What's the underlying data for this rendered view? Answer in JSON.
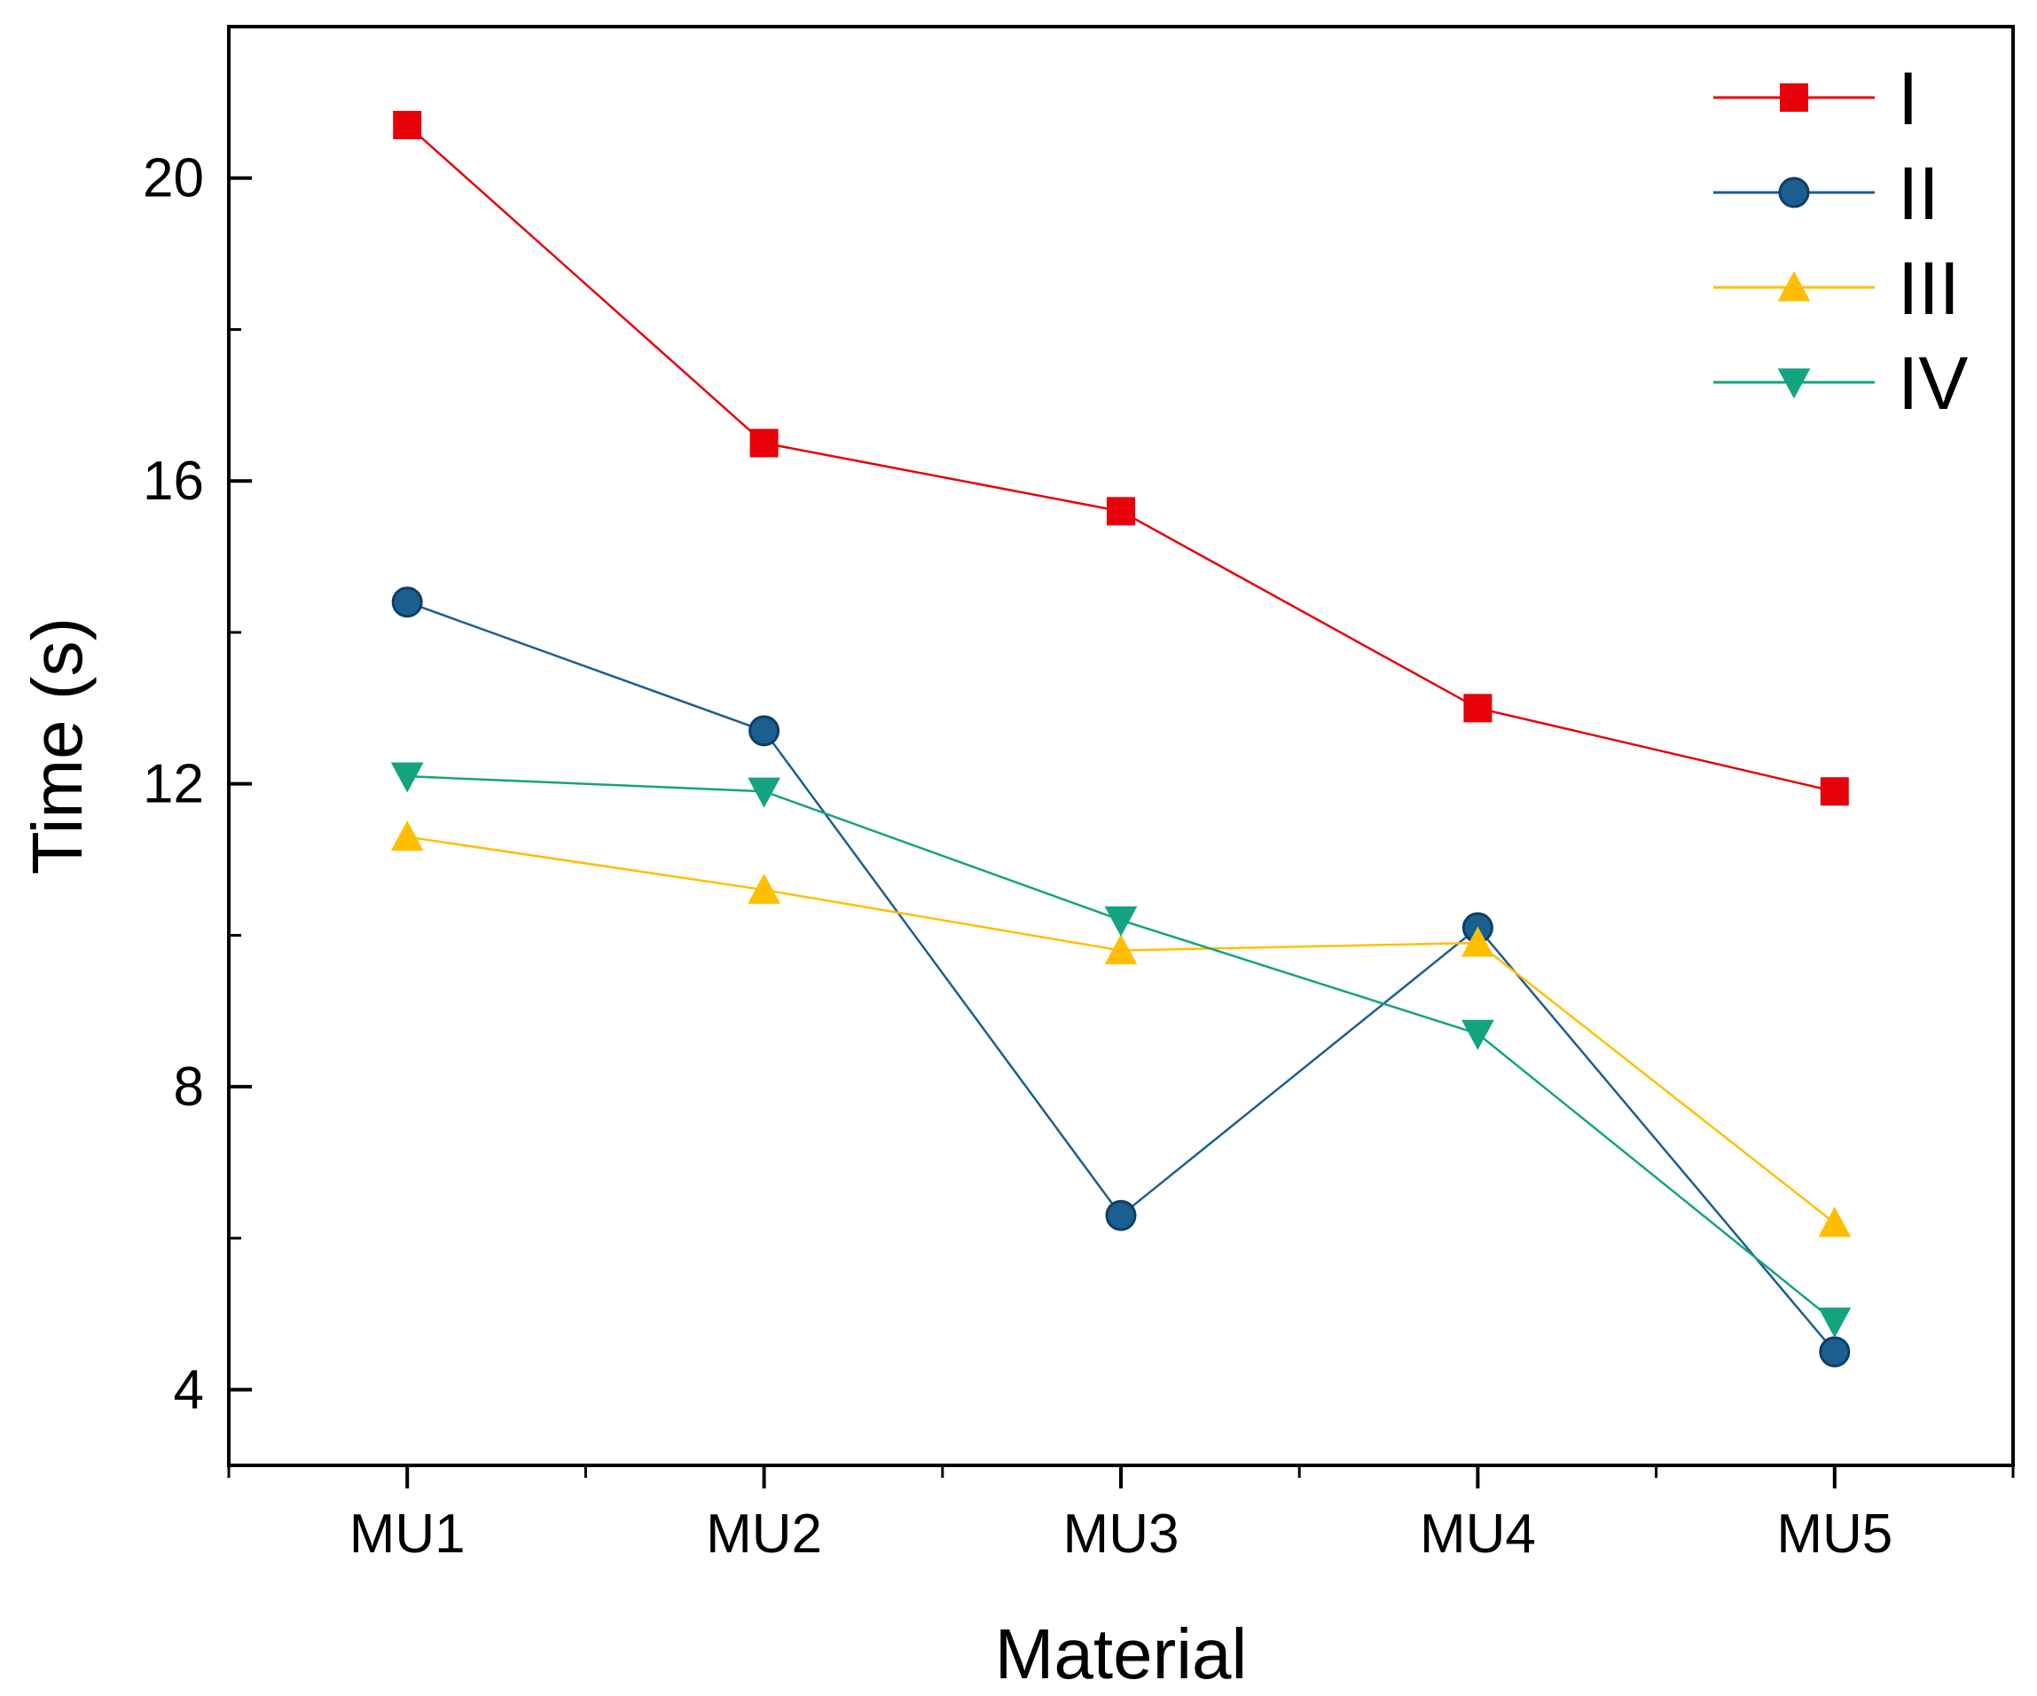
{
  "chart_data": {
    "type": "line",
    "title": "",
    "xlabel": "Material",
    "ylabel": "Time (s)",
    "categories": [
      "MU1",
      "MU2",
      "MU3",
      "MU4",
      "MU5"
    ],
    "ylim": [
      3,
      22
    ],
    "yticks": [
      4,
      8,
      12,
      16,
      20
    ],
    "ytick_labels": [
      "4",
      "8",
      "12",
      "16",
      "20"
    ],
    "legend_position": "top-right",
    "grid": false,
    "series": [
      {
        "name": "I",
        "marker": "square",
        "color": "#e8000b",
        "values": [
          20.7,
          16.5,
          15.6,
          13.0,
          11.9
        ]
      },
      {
        "name": "II",
        "marker": "circle",
        "color": "#1a5f8f",
        "values": [
          14.4,
          12.7,
          6.3,
          10.1,
          4.5
        ]
      },
      {
        "name": "III",
        "marker": "triangle-up",
        "color": "#ffbf00",
        "values": [
          11.3,
          10.6,
          9.8,
          9.9,
          6.2
        ]
      },
      {
        "name": "IV",
        "marker": "triangle-down",
        "color": "#14a37f",
        "values": [
          12.1,
          11.9,
          10.2,
          8.7,
          4.9
        ]
      }
    ]
  }
}
